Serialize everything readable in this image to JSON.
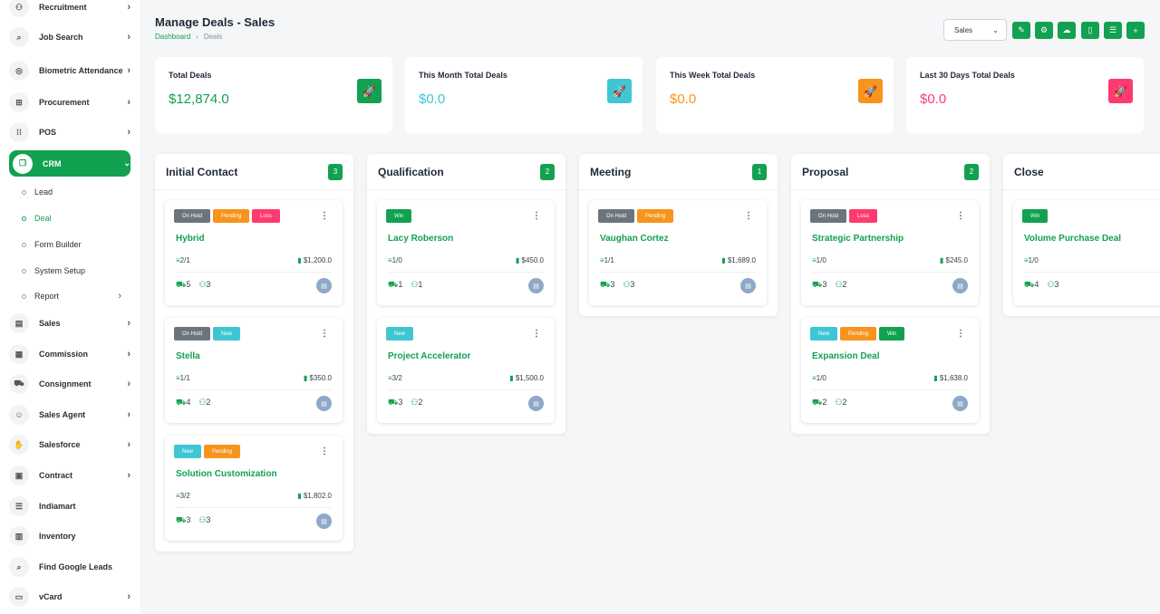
{
  "sidebar": {
    "items": [
      {
        "label": "Recruitment",
        "icon": "user-plus-icon",
        "glyph": "⚇",
        "chevron": true
      },
      {
        "label": "Job Search",
        "icon": "job-search-icon",
        "glyph": "⌕",
        "chevron": true
      },
      {
        "label": "Biometric Attendance",
        "icon": "fingerprint-icon",
        "glyph": "◎",
        "chevron": true
      },
      {
        "label": "Procurement",
        "icon": "cart-icon",
        "glyph": "⊞",
        "chevron": true
      },
      {
        "label": "POS",
        "icon": "grid-icon",
        "glyph": "⁞⁞",
        "chevron": true
      },
      {
        "label": "CRM",
        "icon": "crm-icon",
        "glyph": "❐",
        "chevron": true,
        "active": true
      },
      {
        "label": "Sales",
        "icon": "document-icon",
        "glyph": "▤",
        "chevron": true
      },
      {
        "label": "Commission",
        "icon": "calculator-icon",
        "glyph": "▦",
        "chevron": true
      },
      {
        "label": "Consignment",
        "icon": "truck-icon",
        "glyph": "⛟",
        "chevron": true
      },
      {
        "label": "Sales Agent",
        "icon": "agent-icon",
        "glyph": "☺",
        "chevron": true
      },
      {
        "label": "Salesforce",
        "icon": "thumbs-up-icon",
        "glyph": "✋",
        "chevron": true
      },
      {
        "label": "Contract",
        "icon": "contract-icon",
        "glyph": "▣",
        "chevron": true
      },
      {
        "label": "Indiamart",
        "icon": "list-icon",
        "glyph": "☰",
        "chevron": false
      },
      {
        "label": "Inventory",
        "icon": "inventory-icon",
        "glyph": "▥",
        "chevron": false
      },
      {
        "label": "Find Google Leads",
        "icon": "search-icon",
        "glyph": "⌕",
        "chevron": false
      },
      {
        "label": "vCard",
        "icon": "vcard-icon",
        "glyph": "▭",
        "chevron": true
      }
    ],
    "sub_items": [
      {
        "label": "Lead",
        "chevron": false
      },
      {
        "label": "Deal",
        "chevron": false,
        "active": true
      },
      {
        "label": "Form Builder",
        "chevron": false
      },
      {
        "label": "System Setup",
        "chevron": false
      },
      {
        "label": "Report",
        "chevron": true
      }
    ]
  },
  "header": {
    "title": "Manage Deals - Sales",
    "breadcrumb": {
      "home": "Dashboard",
      "separator": "›",
      "current": "Deals"
    },
    "pipeline_select": "Sales",
    "buttons": [
      {
        "name": "pen-icon",
        "glyph": "✎"
      },
      {
        "name": "hubspot-icon",
        "glyph": "⚙"
      },
      {
        "name": "cloud-icon",
        "glyph": "☁"
      },
      {
        "name": "file-icon",
        "glyph": "▯"
      },
      {
        "name": "list-icon",
        "glyph": "☰"
      },
      {
        "name": "plus-icon",
        "glyph": "+"
      }
    ]
  },
  "stats": [
    {
      "title": "Total Deals",
      "value": "$12,874.0",
      "color": "#12a150"
    },
    {
      "title": "This Month Total Deals",
      "value": "$0.0",
      "color": "#3ec6d3"
    },
    {
      "title": "This Week Total Deals",
      "value": "$0.0",
      "color": "#f7941d"
    },
    {
      "title": "Last 30 Days Total Deals",
      "value": "$0.0",
      "color": "#ff3a6e"
    }
  ],
  "columns": [
    {
      "title": "Initial Contact",
      "count": "3",
      "cards": [
        {
          "name": "Hybrid",
          "badges": [
            {
              "label": "On Hold",
              "type": "hold"
            },
            {
              "label": "Pending",
              "type": "pending"
            },
            {
              "label": "Loss",
              "type": "loss"
            }
          ],
          "tasks": "2/1",
          "amount": "$1,200.0",
          "products": "5",
          "users": "3"
        },
        {
          "name": "Stella",
          "badges": [
            {
              "label": "On Hold",
              "type": "hold"
            },
            {
              "label": "New",
              "type": "new"
            }
          ],
          "tasks": "1/1",
          "amount": "$350.0",
          "products": "4",
          "users": "2"
        },
        {
          "name": "Solution Customization",
          "badges": [
            {
              "label": "New",
              "type": "new"
            },
            {
              "label": "Pending",
              "type": "pending"
            }
          ],
          "tasks": "3/2",
          "amount": "$1,802.0",
          "products": "3",
          "users": "3"
        }
      ]
    },
    {
      "title": "Qualification",
      "count": "2",
      "cards": [
        {
          "name": "Lacy Roberson",
          "badges": [
            {
              "label": "Win",
              "type": "win"
            }
          ],
          "tasks": "1/0",
          "amount": "$450.0",
          "products": "1",
          "users": "1"
        },
        {
          "name": "Project Accelerator",
          "badges": [
            {
              "label": "New",
              "type": "new"
            }
          ],
          "tasks": "3/2",
          "amount": "$1,500.0",
          "products": "3",
          "users": "2"
        }
      ]
    },
    {
      "title": "Meeting",
      "count": "1",
      "cards": [
        {
          "name": "Vaughan Cortez",
          "badges": [
            {
              "label": "On Hold",
              "type": "hold"
            },
            {
              "label": "Pending",
              "type": "pending"
            }
          ],
          "tasks": "1/1",
          "amount": "$1,689.0",
          "products": "3",
          "users": "3"
        }
      ]
    },
    {
      "title": "Proposal",
      "count": "2",
      "cards": [
        {
          "name": "Strategic Partnership",
          "badges": [
            {
              "label": "On Hold",
              "type": "hold"
            },
            {
              "label": "Loss",
              "type": "loss"
            }
          ],
          "tasks": "1/0",
          "amount": "$245.0",
          "products": "3",
          "users": "2"
        },
        {
          "name": "Expansion Deal",
          "badges": [
            {
              "label": "New",
              "type": "new"
            },
            {
              "label": "Pending",
              "type": "pending"
            },
            {
              "label": "Win",
              "type": "win"
            }
          ],
          "tasks": "1/0",
          "amount": "$1,638.0",
          "products": "2",
          "users": "2"
        }
      ]
    },
    {
      "title": "Close",
      "count": "",
      "cards": [
        {
          "name": "Volume Purchase Deal",
          "badges": [
            {
              "label": "Win",
              "type": "win"
            }
          ],
          "tasks": "1/0",
          "amount": "",
          "products": "4",
          "users": "3"
        }
      ]
    }
  ],
  "icons": {
    "rocket": "🚀",
    "kebab": "⋮",
    "tasks": "≡",
    "amount": "▮",
    "products": "⛟",
    "users": "⚇",
    "avatar": "▤"
  },
  "colors": {
    "accent": "#12a150"
  }
}
